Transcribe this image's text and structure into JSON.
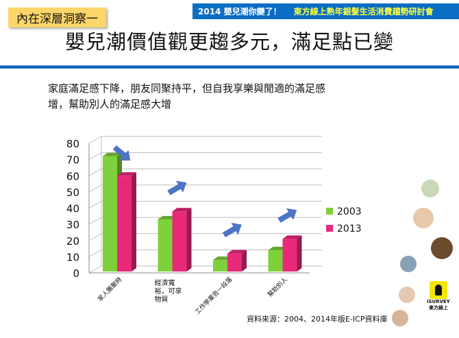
{
  "header": {
    "event": "2014 嬰兒潮你變了！",
    "organizer": "東方線上熟年銀髮生活消費趨勢研討會"
  },
  "tag": "內在深層洞察一",
  "title": "嬰兒潮價值觀更趨多元，滿足點已變",
  "subtitle": [
    "家庭滿足感下降，朋友同聚持平，但自我享樂與閒適的滿足感",
    "增，幫助別人的滿足感大增"
  ],
  "source": "資料來源：2004、2014年版E-ICP資料庫",
  "logo": "iSURVEY 東方線上",
  "colors": {
    "s2003": "#7ed13a",
    "s2013": "#e8297a",
    "arrow": "#4f74c6",
    "grid": "#bbbbbb"
  },
  "chart_data": {
    "type": "bar",
    "categories": [
      "家人團聚時",
      "經濟寬裕，可享物質",
      "工作學業告一段落",
      "幫助別人"
    ],
    "series": [
      {
        "name": "2003",
        "values": [
          72,
          33,
          8,
          14
        ]
      },
      {
        "name": "2013",
        "values": [
          60,
          38,
          12,
          21
        ]
      }
    ],
    "ylim": [
      0,
      80
    ],
    "yticks": [
      "0",
      "10",
      "20",
      "30",
      "40",
      "50",
      "60",
      "70",
      "80"
    ],
    "legend": "right",
    "grid": true
  }
}
